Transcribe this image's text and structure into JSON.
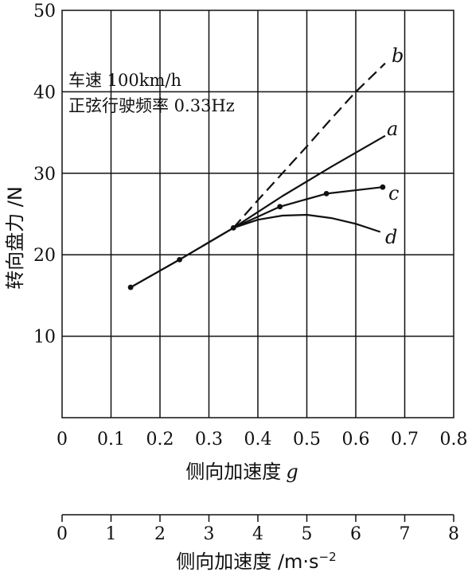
{
  "chart_data": {
    "type": "line",
    "xlabel": "侧向加速度",
    "xlabel_symbol": "g",
    "ylabel": "转向盘力 /N",
    "xlim": [
      0,
      0.8
    ],
    "ylim": [
      0,
      50
    ],
    "x_ticks": [
      "0",
      "0.1",
      "0.2",
      "0.3",
      "0.4",
      "0.5",
      "0.6",
      "0.7",
      "0.8"
    ],
    "y_ticks": [
      "10",
      "20",
      "30",
      "40",
      "50"
    ],
    "grid": true,
    "secondary_x_axis": {
      "label": "侧向加速度 /m·s",
      "label_exponent": "−2",
      "xlim": [
        0,
        8
      ],
      "ticks": [
        "0",
        "1",
        "2",
        "3",
        "4",
        "5",
        "6",
        "7",
        "8"
      ]
    },
    "annotations": [
      "车速 100km/h",
      "正弦行驶频率 0.33Hz"
    ],
    "series": [
      {
        "name": "b",
        "dashed": true,
        "markers": false,
        "x": [
          0.35,
          0.4,
          0.45,
          0.5,
          0.55,
          0.6,
          0.66
        ],
        "y": [
          23.3,
          26.7,
          30.0,
          33.3,
          36.7,
          40.0,
          43.5
        ]
      },
      {
        "name": "a",
        "dashed": false,
        "markers": false,
        "x": [
          0.14,
          0.24,
          0.35,
          0.45,
          0.55,
          0.66
        ],
        "y": [
          16.0,
          19.4,
          23.3,
          27.2,
          30.8,
          34.6
        ]
      },
      {
        "name": "c",
        "dashed": false,
        "markers": true,
        "x": [
          0.14,
          0.24,
          0.35,
          0.445,
          0.54,
          0.655
        ],
        "y": [
          16.0,
          19.4,
          23.3,
          25.9,
          27.5,
          28.3
        ]
      },
      {
        "name": "d",
        "dashed": false,
        "markers": false,
        "x": [
          0.35,
          0.4,
          0.45,
          0.5,
          0.55,
          0.6,
          0.65
        ],
        "y": [
          23.3,
          24.3,
          24.8,
          24.9,
          24.5,
          23.8,
          22.8
        ]
      }
    ]
  }
}
